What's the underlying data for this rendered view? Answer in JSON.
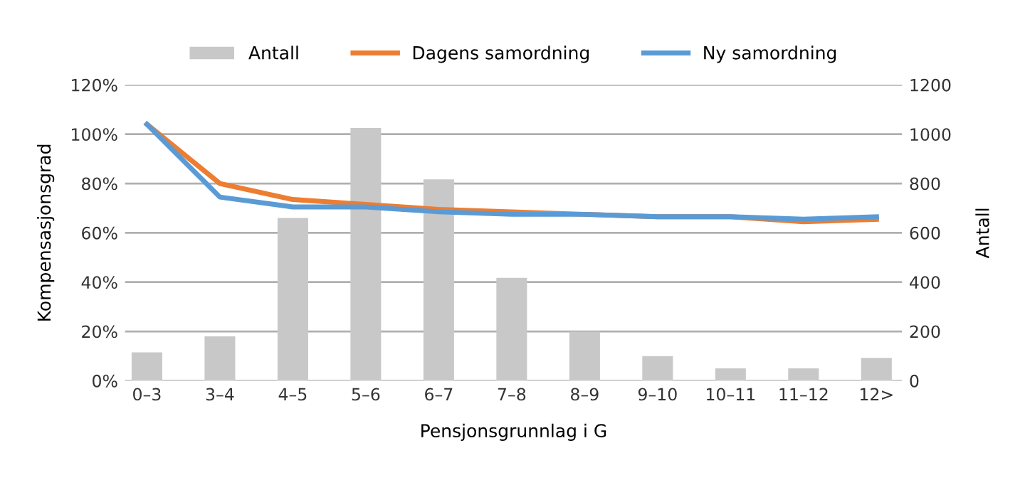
{
  "chart_data": {
    "type": "bar",
    "xlabel": "Pensjonsgrunnlag i G",
    "ylabel": "Kompensasjonsgrad",
    "y2label": "Antall",
    "categories": [
      "0–3",
      "3–4",
      "4–5",
      "5–6",
      "6–7",
      "7–8",
      "8–9",
      "9–10",
      "10–11",
      "11–12",
      "12>"
    ],
    "series": [
      {
        "name": "Antall",
        "axis": "y2",
        "color": "#c8c8c8",
        "values": [
          115,
          180,
          660,
          1025,
          817,
          417,
          199,
          100,
          50,
          50,
          93
        ]
      },
      {
        "name": "Dagens samordning",
        "type": "line",
        "color": "#ed7d31",
        "values": [
          104,
          80,
          73.5,
          71.5,
          69.5,
          68.5,
          67.5,
          66.5,
          66.5,
          64.5,
          65.5
        ]
      },
      {
        "name": "Ny samordning",
        "type": "line",
        "color": "#5b9bd5",
        "values": [
          104,
          74.5,
          70.5,
          70.5,
          68.5,
          67.5,
          67.5,
          66.5,
          66.5,
          65.5,
          66.5
        ]
      }
    ],
    "ylim": [
      0,
      120
    ],
    "yticks": [
      {
        "value": 0,
        "label": "0%"
      },
      {
        "value": 20,
        "label": "20%"
      },
      {
        "value": 40,
        "label": "40%"
      },
      {
        "value": 60,
        "label": "60%"
      },
      {
        "value": 80,
        "label": "80%"
      },
      {
        "value": 100,
        "label": "100%"
      },
      {
        "value": 120,
        "label": "120%"
      }
    ],
    "y2lim": [
      0,
      1200
    ],
    "y2ticks": [
      0,
      200,
      400,
      600,
      800,
      1000,
      1200
    ],
    "grid": "y",
    "legend": "top",
    "line_style": "solid",
    "marker": "none"
  }
}
